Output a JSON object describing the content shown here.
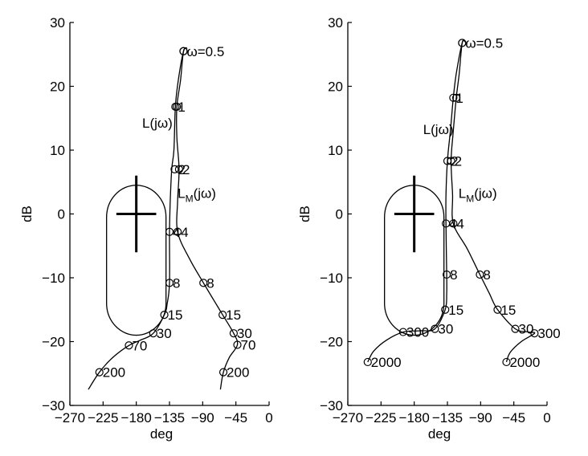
{
  "chart_data": [
    {
      "type": "line",
      "title": "",
      "xlabel": "deg",
      "ylabel": "dB",
      "xlim": [
        -270,
        0
      ],
      "ylim": [
        -30,
        30
      ],
      "xticks": [
        -270,
        -225,
        -180,
        -135,
        -90,
        -45,
        0
      ],
      "yticks": [
        -30,
        -20,
        -10,
        0,
        10,
        20,
        30
      ],
      "grid": false,
      "contour": {
        "center": {
          "x": -180,
          "y": 0
        },
        "cross_half_width_deg": 27,
        "cross_half_height_db": 6,
        "outline": [
          {
            "x": -152,
            "y": -16.5
          },
          {
            "x": -142,
            "y": -8
          },
          {
            "x": -140,
            "y": 2
          },
          {
            "x": -145,
            "y": -0.5
          },
          {
            "x": -142,
            "y": -14
          },
          {
            "x": -160,
            "y": -19
          }
        ]
      },
      "series": [
        {
          "name": "L(jω)",
          "label_at": {
            "x": -172,
            "y": 13.5
          },
          "points": [
            {
              "x": -116,
              "y": 25.5,
              "label": "ω=0.5"
            },
            {
              "x": -127,
              "y": 16.8,
              "label": "1"
            },
            {
              "x": -128,
              "y": 7,
              "label": "2"
            },
            {
              "x": -135,
              "y": -2.8,
              "label": "4"
            },
            {
              "x": -135,
              "y": -10.8,
              "label": "8"
            },
            {
              "x": -142,
              "y": -15.8,
              "label": "15"
            },
            {
              "x": -157,
              "y": -18.7,
              "label": "30"
            },
            {
              "x": -190,
              "y": -20.6,
              "label": "70"
            },
            {
              "x": -230,
              "y": -24.8,
              "label": "200"
            }
          ],
          "curve": [
            {
              "x": -111,
              "y": 26
            },
            {
              "x": -116,
              "y": 25.5
            },
            {
              "x": -123,
              "y": 21
            },
            {
              "x": -127,
              "y": 16.8
            },
            {
              "x": -129,
              "y": 10
            },
            {
              "x": -132,
              "y": 7
            },
            {
              "x": -134,
              "y": 2
            },
            {
              "x": -135,
              "y": -2.8
            },
            {
              "x": -135,
              "y": -10.8
            },
            {
              "x": -138,
              "y": -14
            },
            {
              "x": -142,
              "y": -15.8
            },
            {
              "x": -157,
              "y": -18.7
            },
            {
              "x": -175,
              "y": -19.8
            },
            {
              "x": -190,
              "y": -20.6
            },
            {
              "x": -212,
              "y": -22.5
            },
            {
              "x": -230,
              "y": -24.8
            },
            {
              "x": -245,
              "y": -27.5
            }
          ]
        },
        {
          "name": "L_M(jω)",
          "label_at": {
            "x": -124,
            "y": 2.5
          },
          "points": [
            {
              "x": -116,
              "y": 25.5,
              "label": ""
            },
            {
              "x": -125,
              "y": 16.8,
              "label": ""
            },
            {
              "x": -122,
              "y": 7,
              "label": "2"
            },
            {
              "x": -124,
              "y": -2.8,
              "label": "4"
            },
            {
              "x": -89,
              "y": -10.8,
              "label": "8"
            },
            {
              "x": -63,
              "y": -15.8,
              "label": "15"
            },
            {
              "x": -48,
              "y": -18.7,
              "label": "30"
            },
            {
              "x": -43,
              "y": -20.5,
              "label": "70"
            },
            {
              "x": -62,
              "y": -24.8,
              "label": "200"
            }
          ],
          "curve": [
            {
              "x": -111,
              "y": 26
            },
            {
              "x": -116,
              "y": 25.5
            },
            {
              "x": -120,
              "y": 21
            },
            {
              "x": -125,
              "y": 16.8
            },
            {
              "x": -125,
              "y": 12
            },
            {
              "x": -122,
              "y": 7
            },
            {
              "x": -124,
              "y": 2
            },
            {
              "x": -124,
              "y": -2.8
            },
            {
              "x": -108,
              "y": -7
            },
            {
              "x": -89,
              "y": -10.8
            },
            {
              "x": -75,
              "y": -13.5
            },
            {
              "x": -63,
              "y": -15.8
            },
            {
              "x": -48,
              "y": -18.7
            },
            {
              "x": -43,
              "y": -20.5
            },
            {
              "x": -54,
              "y": -22.5
            },
            {
              "x": -62,
              "y": -24.8
            },
            {
              "x": -66,
              "y": -27.5
            }
          ]
        }
      ]
    },
    {
      "type": "line",
      "title": "",
      "xlabel": "deg",
      "ylabel": "dB",
      "xlim": [
        -270,
        0
      ],
      "ylim": [
        -30,
        30
      ],
      "xticks": [
        -270,
        -225,
        -180,
        -135,
        -90,
        -45,
        0
      ],
      "yticks": [
        -30,
        -20,
        -10,
        0,
        10,
        20,
        30
      ],
      "grid": false,
      "contour": {
        "center": {
          "x": -180,
          "y": 0
        },
        "cross_half_width_deg": 27,
        "cross_half_height_db": 6,
        "outline": []
      },
      "series": [
        {
          "name": "L(jω)",
          "label_at": {
            "x": -168,
            "y": 12.5
          },
          "points": [
            {
              "x": -115,
              "y": 26.8,
              "label": "ω=0.5"
            },
            {
              "x": -127,
              "y": 18.2,
              "label": "1"
            },
            {
              "x": -135,
              "y": 8.3,
              "label": "2"
            },
            {
              "x": -137,
              "y": -1.5,
              "label": "4"
            },
            {
              "x": -136,
              "y": -9.5,
              "label": "8"
            },
            {
              "x": -138,
              "y": -15,
              "label": "15"
            },
            {
              "x": -152,
              "y": -18,
              "label": "30"
            },
            {
              "x": -195,
              "y": -18.5,
              "label": "300"
            },
            {
              "x": -243,
              "y": -23.2,
              "label": "2000"
            }
          ],
          "curve": [
            {
              "x": -111,
              "y": 27
            },
            {
              "x": -115,
              "y": 26.8
            },
            {
              "x": -123,
              "y": 22
            },
            {
              "x": -127,
              "y": 18.2
            },
            {
              "x": -131,
              "y": 13
            },
            {
              "x": -135,
              "y": 8.3
            },
            {
              "x": -137,
              "y": 3
            },
            {
              "x": -137,
              "y": -1.5
            },
            {
              "x": -136,
              "y": -9.5
            },
            {
              "x": -136,
              "y": -12.5
            },
            {
              "x": -138,
              "y": -15
            },
            {
              "x": -152,
              "y": -18
            },
            {
              "x": -172,
              "y": -18.3
            },
            {
              "x": -195,
              "y": -18.5
            },
            {
              "x": -218,
              "y": -19.8
            },
            {
              "x": -235,
              "y": -21.5
            },
            {
              "x": -243,
              "y": -23.2
            }
          ]
        },
        {
          "name": "L_M(jω)",
          "label_at": {
            "x": -120,
            "y": 2.5
          },
          "points": [
            {
              "x": -115,
              "y": 26.8,
              "label": ""
            },
            {
              "x": -123,
              "y": 18.2,
              "label": ""
            },
            {
              "x": -130,
              "y": 8.3,
              "label": "2"
            },
            {
              "x": -127,
              "y": -1.5,
              "label": "4"
            },
            {
              "x": -91,
              "y": -9.5,
              "label": "8"
            },
            {
              "x": -67,
              "y": -15,
              "label": "15"
            },
            {
              "x": -43,
              "y": -18,
              "label": "30"
            },
            {
              "x": -17,
              "y": -18.7,
              "label": "300"
            },
            {
              "x": -55,
              "y": -23.2,
              "label": "2000"
            }
          ],
          "curve": [
            {
              "x": -111,
              "y": 27
            },
            {
              "x": -115,
              "y": 26.8
            },
            {
              "x": -119,
              "y": 22
            },
            {
              "x": -123,
              "y": 18.2
            },
            {
              "x": -127,
              "y": 13
            },
            {
              "x": -130,
              "y": 8.3
            },
            {
              "x": -128,
              "y": 3
            },
            {
              "x": -127,
              "y": -1.5
            },
            {
              "x": -108,
              "y": -5.5
            },
            {
              "x": -91,
              "y": -9.5
            },
            {
              "x": -78,
              "y": -12.5
            },
            {
              "x": -67,
              "y": -15
            },
            {
              "x": -43,
              "y": -18
            },
            {
              "x": -25,
              "y": -18.5
            },
            {
              "x": -17,
              "y": -18.7
            },
            {
              "x": -35,
              "y": -20
            },
            {
              "x": -50,
              "y": -21.7
            },
            {
              "x": -55,
              "y": -23.2
            }
          ]
        }
      ]
    }
  ]
}
